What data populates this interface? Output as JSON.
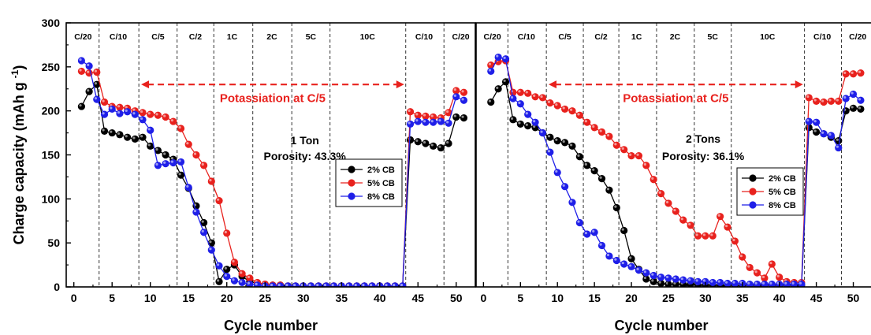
{
  "chart_data": [
    {
      "type": "line",
      "xlabel": "Cycle number",
      "ylabel": "Charge capacity (mAh g",
      "ylabel_sup": "-1",
      "ylabel_close": ")",
      "xlim": [
        -1,
        52.5
      ],
      "ylim": [
        0,
        300
      ],
      "xticks": [
        0,
        5,
        10,
        15,
        20,
        25,
        30,
        35,
        40,
        45,
        50
      ],
      "yticks": [
        0,
        50,
        100,
        150,
        200,
        250,
        300
      ],
      "rate_dividers": [
        3.3,
        8.5,
        13.5,
        18.3,
        23.4,
        28.5,
        33.5,
        43.4,
        48.4
      ],
      "rate_labels": [
        {
          "x": 1.2,
          "label": "C/20"
        },
        {
          "x": 5.8,
          "label": "C/10"
        },
        {
          "x": 11.0,
          "label": "C/5"
        },
        {
          "x": 15.9,
          "label": "C/2"
        },
        {
          "x": 20.7,
          "label": "1C"
        },
        {
          "x": 25.9,
          "label": "2C"
        },
        {
          "x": 31.0,
          "label": "5C"
        },
        {
          "x": 38.4,
          "label": "10C"
        },
        {
          "x": 45.8,
          "label": "C/10"
        },
        {
          "x": 50.6,
          "label": "C/20"
        }
      ],
      "arrow": {
        "x_from": 8.8,
        "x_to": 43.2,
        "y": 230,
        "label": "Potassiation at C/5",
        "label_x": 26,
        "label_y": 210
      },
      "annotation": {
        "line1": "1 Ton",
        "line2": "Porosity: 43.3%",
        "x": 30.2,
        "y1": 162,
        "y2": 144
      },
      "series": [
        {
          "name": "2% CB",
          "color": "#000000",
          "x": [
            1,
            2,
            3,
            4,
            5,
            6,
            7,
            8,
            9,
            10,
            11,
            12,
            13,
            14,
            15,
            16,
            17,
            18,
            19,
            20,
            21,
            22,
            23,
            24,
            25,
            26,
            27,
            28,
            29,
            30,
            31,
            32,
            33,
            34,
            35,
            36,
            37,
            38,
            39,
            40,
            41,
            42,
            43,
            44,
            45,
            46,
            47,
            48,
            49,
            50,
            51
          ],
          "y": [
            205,
            222,
            230,
            177,
            175,
            173,
            170,
            168,
            170,
            160,
            155,
            150,
            145,
            127,
            112,
            92,
            73,
            50,
            6,
            20,
            25,
            12,
            6,
            4,
            3,
            2,
            2,
            1,
            1,
            1,
            1,
            1,
            1,
            1,
            1,
            1,
            1,
            1,
            1,
            1,
            1,
            1,
            1,
            167,
            165,
            163,
            160,
            158,
            163,
            193,
            192
          ]
        },
        {
          "name": "5% CB",
          "color": "#e8211d",
          "x": [
            1,
            2,
            3,
            4,
            5,
            6,
            7,
            8,
            9,
            10,
            11,
            12,
            13,
            14,
            15,
            16,
            17,
            18,
            19,
            20,
            21,
            22,
            23,
            24,
            25,
            26,
            27,
            28,
            29,
            30,
            31,
            32,
            33,
            34,
            35,
            36,
            37,
            38,
            39,
            40,
            41,
            42,
            43,
            44,
            45,
            46,
            47,
            48,
            49,
            50,
            51
          ],
          "y": [
            245,
            243,
            244,
            210,
            205,
            204,
            203,
            200,
            198,
            196,
            195,
            193,
            188,
            180,
            162,
            150,
            138,
            120,
            98,
            61,
            28,
            15,
            10,
            5,
            3,
            2,
            2,
            1,
            1,
            1,
            1,
            1,
            1,
            1,
            1,
            1,
            1,
            1,
            1,
            1,
            1,
            1,
            1,
            199,
            195,
            194,
            193,
            192,
            198,
            223,
            221
          ]
        },
        {
          "name": "8% CB",
          "color": "#1f1fe8",
          "x": [
            1,
            2,
            3,
            4,
            5,
            6,
            7,
            8,
            9,
            10,
            11,
            12,
            13,
            14,
            15,
            16,
            17,
            18,
            19,
            20,
            21,
            22,
            23,
            24,
            25,
            26,
            27,
            28,
            29,
            30,
            31,
            32,
            33,
            34,
            35,
            36,
            37,
            38,
            39,
            40,
            41,
            42,
            43,
            44,
            45,
            46,
            47,
            48,
            49,
            50,
            51
          ],
          "y": [
            257,
            251,
            213,
            196,
            202,
            197,
            199,
            196,
            190,
            178,
            138,
            140,
            141,
            142,
            113,
            85,
            62,
            42,
            24,
            12,
            7,
            5,
            3,
            2,
            1,
            1,
            1,
            1,
            1,
            1,
            1,
            1,
            1,
            1,
            1,
            1,
            1,
            1,
            1,
            1,
            1,
            1,
            1,
            185,
            188,
            187,
            187,
            188,
            186,
            216,
            212
          ]
        }
      ],
      "legend_position": "right"
    },
    {
      "type": "line",
      "xlabel": "Cycle number",
      "ylabel": "",
      "xlim": [
        -1,
        52.5
      ],
      "ylim": [
        0,
        300
      ],
      "xticks": [
        0,
        5,
        10,
        15,
        20,
        25,
        30,
        35,
        40,
        45,
        50
      ],
      "yticks": [],
      "rate_dividers": [
        3.3,
        8.5,
        13.5,
        18.3,
        23.4,
        28.5,
        33.5,
        43.4,
        48.4
      ],
      "rate_labels": [
        {
          "x": 1.2,
          "label": "C/20"
        },
        {
          "x": 5.8,
          "label": "C/10"
        },
        {
          "x": 11.0,
          "label": "C/5"
        },
        {
          "x": 15.9,
          "label": "C/2"
        },
        {
          "x": 20.7,
          "label": "1C"
        },
        {
          "x": 25.9,
          "label": "2C"
        },
        {
          "x": 31.0,
          "label": "5C"
        },
        {
          "x": 38.4,
          "label": "10C"
        },
        {
          "x": 45.8,
          "label": "C/10"
        },
        {
          "x": 50.6,
          "label": "C/20"
        }
      ],
      "arrow": {
        "x_from": 8.8,
        "x_to": 43.2,
        "y": 230,
        "label": "Potassiation at C/5",
        "label_x": 26,
        "label_y": 210
      },
      "annotation": {
        "line1": "2 Tons",
        "line2": "Porosity: 36.1%",
        "x": 29.7,
        "y1": 164,
        "y2": 144
      },
      "series": [
        {
          "name": "2% CB",
          "color": "#000000",
          "x": [
            1,
            2,
            3,
            4,
            5,
            6,
            7,
            8,
            9,
            10,
            11,
            12,
            13,
            14,
            15,
            16,
            17,
            18,
            19,
            20,
            21,
            22,
            23,
            24,
            25,
            26,
            27,
            28,
            29,
            30,
            31,
            32,
            33,
            34,
            35,
            36,
            37,
            38,
            39,
            40,
            41,
            42,
            43,
            44,
            45,
            46,
            47,
            48,
            49,
            50,
            51
          ],
          "y": [
            210,
            225,
            233,
            190,
            185,
            183,
            181,
            175,
            170,
            166,
            164,
            160,
            148,
            138,
            132,
            123,
            110,
            90,
            64,
            32,
            20,
            9,
            6,
            4,
            3,
            3,
            3,
            3,
            2,
            2,
            2,
            2,
            2,
            2,
            2,
            2,
            2,
            2,
            2,
            2,
            2,
            2,
            2,
            181,
            176,
            174,
            170,
            166,
            200,
            203,
            202
          ]
        },
        {
          "name": "5% CB",
          "color": "#e8211d",
          "x": [
            1,
            2,
            3,
            4,
            5,
            6,
            7,
            8,
            9,
            10,
            11,
            12,
            13,
            14,
            15,
            16,
            17,
            18,
            19,
            20,
            21,
            22,
            23,
            24,
            25,
            26,
            27,
            28,
            29,
            30,
            31,
            32,
            33,
            34,
            35,
            36,
            37,
            38,
            39,
            40,
            41,
            42,
            43,
            44,
            45,
            46,
            47,
            48,
            49,
            50,
            51
          ],
          "y": [
            252,
            256,
            257,
            221,
            221,
            220,
            216,
            215,
            209,
            206,
            202,
            200,
            195,
            187,
            181,
            176,
            171,
            161,
            156,
            149,
            149,
            138,
            122,
            106,
            95,
            86,
            76,
            70,
            58,
            58,
            58,
            80,
            68,
            52,
            34,
            22,
            16,
            10,
            26,
            11,
            6,
            5,
            5,
            215,
            211,
            210,
            211,
            211,
            242,
            242,
            243
          ]
        },
        {
          "name": "8% CB",
          "color": "#1f1fe8",
          "x": [
            1,
            2,
            3,
            4,
            5,
            6,
            7,
            8,
            9,
            10,
            11,
            12,
            13,
            14,
            15,
            16,
            17,
            18,
            19,
            20,
            21,
            22,
            23,
            24,
            25,
            26,
            27,
            28,
            29,
            30,
            31,
            32,
            33,
            34,
            35,
            36,
            37,
            38,
            39,
            40,
            41,
            42,
            43,
            44,
            45,
            46,
            47,
            48,
            49,
            50,
            51
          ],
          "y": [
            245,
            261,
            259,
            214,
            208,
            196,
            187,
            175,
            153,
            130,
            114,
            96,
            73,
            60,
            62,
            47,
            35,
            30,
            26,
            23,
            19,
            16,
            13,
            11,
            10,
            9,
            8,
            7,
            6,
            6,
            5,
            5,
            4,
            4,
            4,
            3,
            3,
            3,
            3,
            3,
            3,
            3,
            3,
            188,
            187,
            174,
            172,
            158,
            214,
            219,
            212
          ]
        }
      ],
      "legend_position": "right"
    }
  ]
}
